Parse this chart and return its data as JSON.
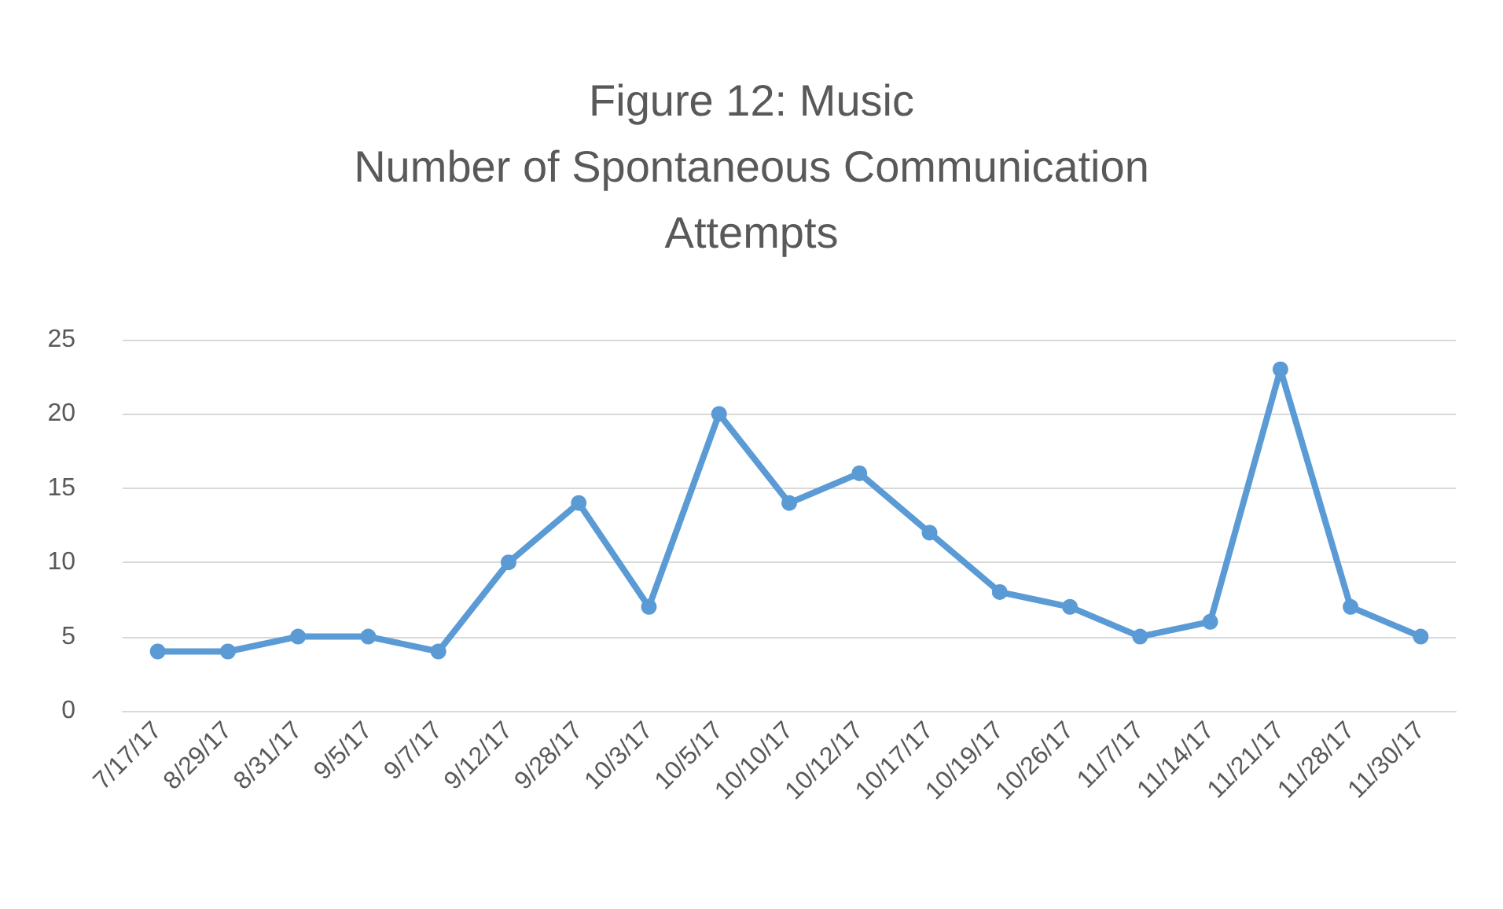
{
  "chart_data": {
    "type": "line",
    "title": "Figure 12: Music\nNumber of Spontaneous Communication\nAttempts",
    "categories": [
      "7/17/17",
      "8/29/17",
      "8/31/17",
      "9/5/17",
      "9/7/17",
      "9/12/17",
      "9/28/17",
      "10/3/17",
      "10/5/17",
      "10/10/17",
      "10/12/17",
      "10/17/17",
      "10/19/17",
      "10/26/17",
      "11/7/17",
      "11/14/17",
      "11/21/17",
      "11/28/17",
      "11/30/17"
    ],
    "series": [
      {
        "color": "#5b9bd5",
        "values": [
          4,
          4,
          5,
          5,
          4,
          10,
          14,
          7,
          20,
          14,
          16,
          12,
          8,
          7,
          5,
          6,
          23,
          7,
          5
        ]
      }
    ],
    "ylim": [
      0,
      25
    ],
    "yticks": [
      0,
      5,
      10,
      15,
      20,
      25
    ],
    "grid": "y",
    "marker": "circle",
    "line_style": "solid"
  }
}
